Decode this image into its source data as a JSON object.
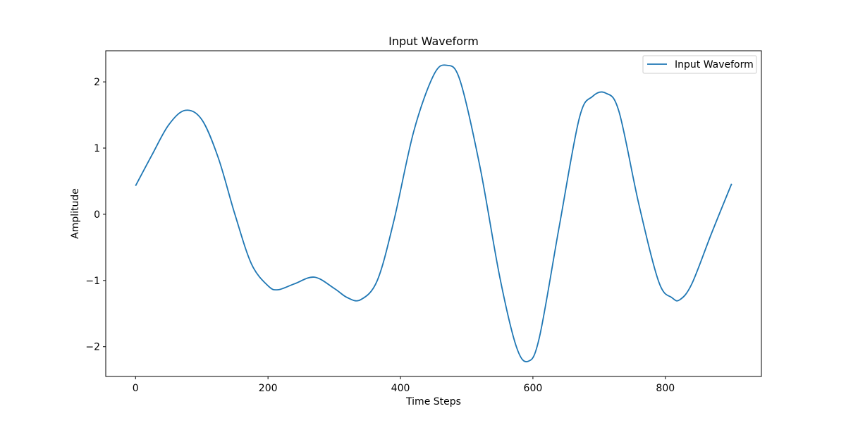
{
  "chart_data": {
    "type": "line",
    "title": "Input Waveform",
    "xlabel": "Time Steps",
    "ylabel": "Amplitude",
    "xlim": [
      -45,
      945
    ],
    "ylim": [
      -2.45,
      2.47
    ],
    "x_ticks": [
      0,
      200,
      400,
      600,
      800
    ],
    "y_ticks": [
      -2,
      -1,
      0,
      1,
      2
    ],
    "x_tick_labels": [
      "0",
      "200",
      "400",
      "600",
      "800"
    ],
    "y_tick_labels": [
      "−2",
      "−1",
      "0",
      "1",
      "2"
    ],
    "grid": false,
    "legend_position": "upper right",
    "series": [
      {
        "name": "Input Waveform",
        "color": "#1f77b4",
        "x": [
          0,
          25,
          50,
          75,
          100,
          125,
          150,
          175,
          200,
          215,
          240,
          270,
          300,
          320,
          340,
          365,
          390,
          420,
          450,
          470,
          490,
          520,
          550,
          575,
          593,
          610,
          640,
          670,
          690,
          710,
          730,
          760,
          790,
          810,
          822,
          840,
          870,
          900
        ],
        "y": [
          0.43,
          0.9,
          1.35,
          1.57,
          1.43,
          0.85,
          0.0,
          -0.75,
          -1.08,
          -1.14,
          -1.05,
          -0.95,
          -1.12,
          -1.26,
          -1.29,
          -1.0,
          -0.1,
          1.25,
          2.1,
          2.25,
          2.02,
          0.72,
          -0.95,
          -2.0,
          -2.22,
          -1.85,
          -0.17,
          1.45,
          1.78,
          1.83,
          1.55,
          0.15,
          -1.02,
          -1.26,
          -1.29,
          -1.05,
          -0.28,
          0.46
        ]
      }
    ]
  }
}
